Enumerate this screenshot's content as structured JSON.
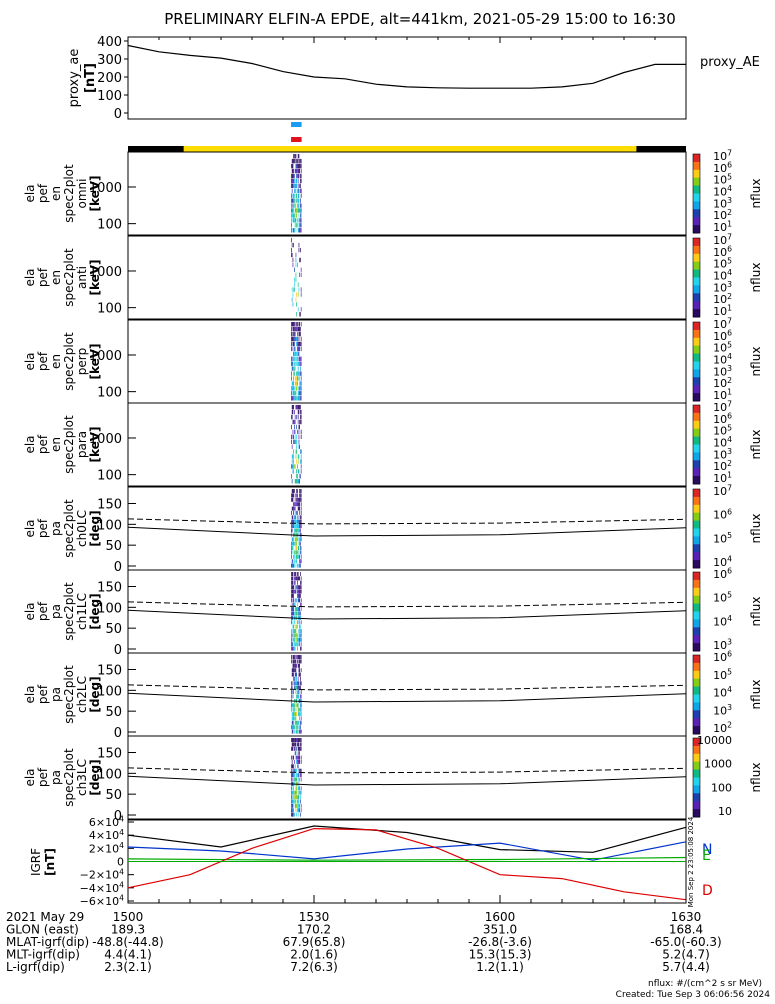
{
  "title": "PRELIMINARY ELFIN-A EPDE, alt=441km, 2021-05-29 15:00 to 16:30",
  "colors": {
    "ae_line": "#000000",
    "sc_bar_dark": "#000000",
    "sc_bar_light": "#ffdd00",
    "marker_blue": "#1a9cf0",
    "marker_red": "#e0121c",
    "grf_n": "#0033cc",
    "grf_e": "#00aa00",
    "grf_d": "#dd0000",
    "grf_total": "#000000"
  },
  "panels": [
    {
      "id": "ae",
      "ylabel": [
        "proxy_ae",
        "[nT]"
      ],
      "ticks": [
        "400",
        "300",
        "200",
        "100",
        "0"
      ],
      "legend": "proxy_AE"
    },
    {
      "id": "omni",
      "ylabel": [
        "ela",
        "pef",
        "en",
        "spec2plot",
        "omni",
        "[keV]"
      ],
      "ticks": [
        "1000",
        "100"
      ],
      "cbar_ticks": [
        "10^7",
        "10^6",
        "10^5",
        "10^4",
        "10^3",
        "10^2",
        "10^1"
      ],
      "cbar_label": "nflux"
    },
    {
      "id": "anti",
      "ylabel": [
        "ela",
        "pef",
        "en",
        "spec2plot",
        "anti",
        "[keV]"
      ],
      "ticks": [
        "1000",
        "100"
      ],
      "cbar_ticks": [
        "10^7",
        "10^6",
        "10^5",
        "10^4",
        "10^3",
        "10^2",
        "10^1"
      ],
      "cbar_label": "nflux"
    },
    {
      "id": "perp",
      "ylabel": [
        "ela",
        "pef",
        "en",
        "spec2plot",
        "perp",
        "[keV]"
      ],
      "ticks": [
        "1000",
        "100"
      ],
      "cbar_ticks": [
        "10^7",
        "10^6",
        "10^5",
        "10^4",
        "10^3",
        "10^2",
        "10^1"
      ],
      "cbar_label": "nflux"
    },
    {
      "id": "para",
      "ylabel": [
        "ela",
        "pef",
        "en",
        "spec2plot",
        "para",
        "[keV]"
      ],
      "ticks": [
        "1000",
        "100"
      ],
      "cbar_ticks": [
        "10^7",
        "10^6",
        "10^5",
        "10^4",
        "10^3",
        "10^2",
        "10^1"
      ],
      "cbar_label": "nflux"
    },
    {
      "id": "ch0",
      "ylabel": [
        "ela",
        "pef",
        "pa",
        "spec2plot",
        "ch0LC",
        "[deg]"
      ],
      "ticks": [
        "150",
        "100",
        "50",
        "0"
      ],
      "cbar_ticks": [
        "10^7",
        "10^6",
        "10^5",
        "10^4"
      ],
      "cbar_label": "nflux"
    },
    {
      "id": "ch1",
      "ylabel": [
        "ela",
        "pef",
        "pa",
        "spec2plot",
        "ch1LC",
        "[deg]"
      ],
      "ticks": [
        "150",
        "100",
        "50",
        "0"
      ],
      "cbar_ticks": [
        "10^6",
        "10^5",
        "10^4",
        "10^3"
      ],
      "cbar_label": "nflux"
    },
    {
      "id": "ch2",
      "ylabel": [
        "ela",
        "pef",
        "pa",
        "spec2plot",
        "ch2LC",
        "[deg]"
      ],
      "ticks": [
        "150",
        "100",
        "50",
        "0"
      ],
      "cbar_ticks": [
        "10^6",
        "10^5",
        "10^4",
        "10^3",
        "10^2"
      ],
      "cbar_label": "nflux"
    },
    {
      "id": "ch3",
      "ylabel": [
        "ela",
        "pef",
        "pa",
        "spec2plot",
        "ch3LC",
        "[deg]"
      ],
      "ticks": [
        "150",
        "100",
        "50",
        "0"
      ],
      "cbar_ticks": [
        "10000",
        "1000",
        "100",
        "10"
      ],
      "cbar_label": "nflux"
    },
    {
      "id": "grf",
      "ylabel": [
        "IGRF",
        "[nT]"
      ],
      "ticks": [
        "6×10^4",
        "4×10^4",
        "2×10^4",
        "0",
        "−2×10^4",
        "−4×10^4",
        "−6×10^4"
      ],
      "legend_letters": [
        "N",
        "E",
        "D"
      ],
      "side_note": "Mon Sep  2 23:05:08 2024"
    }
  ],
  "chart_data": {
    "type": "line",
    "x_range": [
      "15:00",
      "16:30"
    ],
    "x_ticks": [
      "1500",
      "1530",
      "1600",
      "1630"
    ],
    "proxy_ae": {
      "x_min": [
        0,
        5,
        10,
        15,
        20,
        25,
        30,
        35,
        40,
        45,
        50,
        55,
        60,
        65,
        70,
        75,
        80,
        85,
        90
      ],
      "values": [
        375,
        340,
        320,
        305,
        275,
        230,
        200,
        190,
        160,
        145,
        140,
        138,
        138,
        138,
        145,
        165,
        225,
        270,
        270
      ],
      "ylim": [
        0,
        400
      ]
    },
    "spectrogram": {
      "active_window_min": [
        26.3,
        28.0
      ],
      "energy_range_keV": [
        63,
        7000
      ]
    },
    "pitch_angle_lines": {
      "loss_cone_solid_deg": [
        93,
        72,
        75,
        92
      ],
      "anti_loss_cone_dashed_deg": [
        113,
        101,
        103,
        112
      ],
      "x_min": [
        0,
        30,
        60,
        90
      ]
    },
    "igrf": {
      "total": {
        "x_min": [
          0,
          15,
          30,
          45,
          60,
          75,
          90
        ],
        "values": [
          40000,
          22000,
          54000,
          44000,
          18000,
          14000,
          52000
        ]
      },
      "N": {
        "x_min": [
          0,
          15,
          30,
          45,
          60,
          75,
          90
        ],
        "values": [
          22000,
          16000,
          4000,
          19000,
          28000,
          2000,
          30000
        ]
      },
      "E": {
        "x_min": [
          0,
          30,
          60,
          90
        ],
        "values": [
          4000,
          2000,
          3000,
          6000
        ]
      },
      "D": {
        "x_min": [
          0,
          10,
          20,
          30,
          40,
          50,
          60,
          70,
          80,
          90
        ],
        "values": [
          -40000,
          -20000,
          20000,
          50000,
          48000,
          20000,
          -20000,
          -26000,
          -46000,
          -58000
        ]
      },
      "ylim": [
        -60000,
        60000
      ]
    }
  },
  "footer": {
    "rows": [
      {
        "label": "2021 May 29",
        "values": [
          "1500",
          "1530",
          "1600",
          "1630"
        ]
      },
      {
        "label": "GLON (east)",
        "values": [
          "189.3",
          "170.2",
          "351.0",
          "168.4"
        ]
      },
      {
        "label": "MLAT-igrf(dip)",
        "values": [
          "-48.8(-44.8)",
          "67.9(65.8)",
          "-26.8(-3.6)",
          "-65.0(-60.3)"
        ]
      },
      {
        "label": "MLT-igrf(dip)",
        "values": [
          "4.4(4.1)",
          "2.0(1.6)",
          "15.3(15.3)",
          "5.2(4.7)"
        ]
      },
      {
        "label": "L-igrf(dip)",
        "values": [
          "2.3(2.1)",
          "7.2(6.3)",
          "1.2(1.1)",
          "5.7(4.4)"
        ]
      }
    ],
    "nflux_unit": "nflux: #/(cm^2 s sr MeV)",
    "created": "Created: Tue Sep  3 06:06:56 2024"
  }
}
